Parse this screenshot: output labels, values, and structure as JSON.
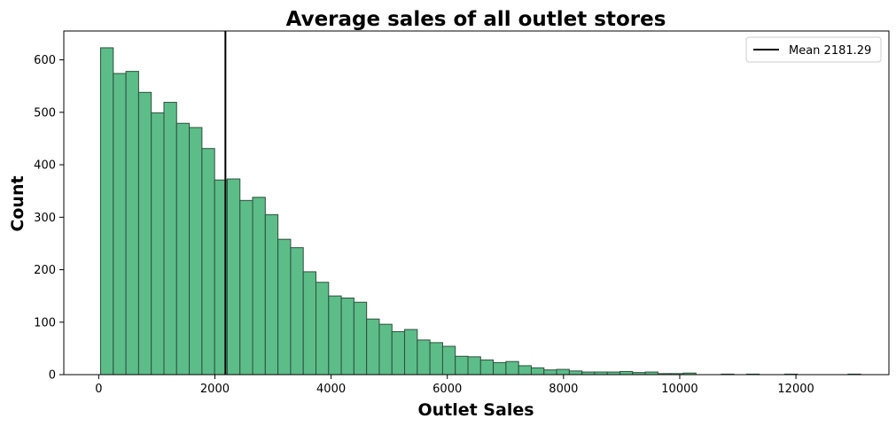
{
  "chart_data": {
    "type": "bar",
    "title": "Average sales of all outlet stores",
    "xlabel": "Outlet Sales",
    "ylabel": "Count",
    "xlim": [
      -600,
      13600
    ],
    "ylim": [
      0,
      655
    ],
    "xticks": [
      0,
      2000,
      4000,
      6000,
      8000,
      10000,
      12000
    ],
    "yticks": [
      0,
      100,
      200,
      300,
      400,
      500,
      600
    ],
    "bin_start": 33.29,
    "bin_width": 218,
    "values": [
      623,
      574,
      578,
      538,
      499,
      519,
      479,
      471,
      431,
      371,
      373,
      332,
      338,
      305,
      258,
      242,
      196,
      176,
      150,
      146,
      138,
      106,
      96,
      82,
      86,
      66,
      61,
      54,
      35,
      34,
      28,
      23,
      25,
      17,
      13,
      9,
      10,
      7,
      5,
      5,
      5,
      6,
      4,
      5,
      2,
      2,
      3,
      0,
      0,
      1,
      0,
      1,
      0,
      0,
      1,
      0,
      0,
      0,
      0,
      1
    ],
    "bar_color": "#5cbd88",
    "edge_color": "#2f4f3f",
    "mean_line": {
      "value": 2181.29,
      "label": "Mean 2181.29",
      "color": "#000000"
    },
    "legend": {
      "position": "top-right",
      "entries": [
        "Mean 2181.29"
      ]
    },
    "grid": false
  }
}
